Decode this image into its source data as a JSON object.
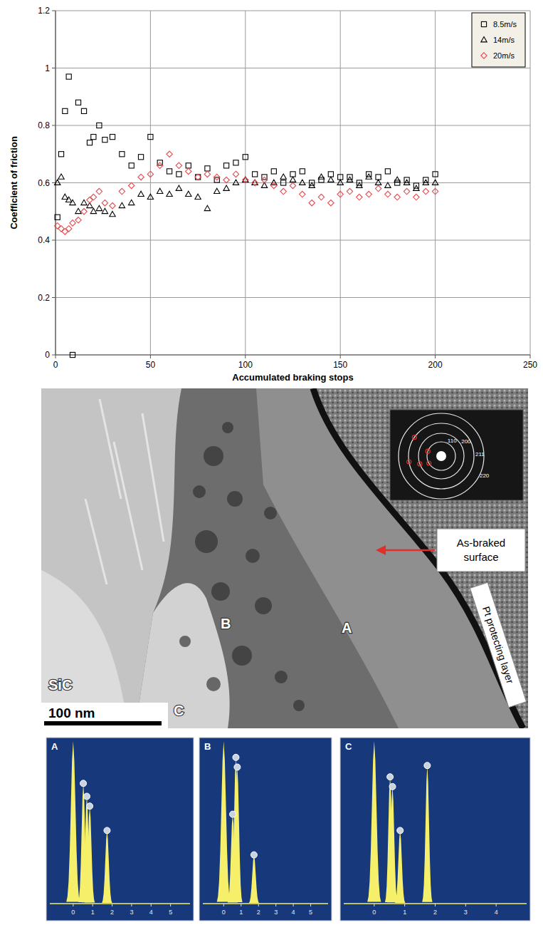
{
  "chart_data": {
    "type": "scatter",
    "x_label": "Accumulated braking stops",
    "y_label": "Coefficient of friction",
    "xlim": [
      0,
      250
    ],
    "ylim": [
      0,
      1.2
    ],
    "xticks": [
      0,
      50,
      100,
      150,
      200,
      250
    ],
    "yticks": [
      0,
      0.2,
      0.4,
      0.6,
      0.8,
      1,
      1.2
    ],
    "grid": true,
    "legend": "upper right",
    "x": [
      1,
      3,
      5,
      7,
      9,
      12,
      15,
      18,
      20,
      23,
      26,
      30,
      35,
      40,
      45,
      50,
      55,
      60,
      65,
      70,
      75,
      80,
      85,
      90,
      95,
      100,
      105,
      110,
      115,
      120,
      125,
      130,
      135,
      140,
      145,
      150,
      155,
      160,
      165,
      170,
      175,
      180,
      185,
      190,
      195,
      200
    ],
    "series": [
      {
        "name": "8.5m/s",
        "color": "#000000",
        "marker": "square",
        "values": [
          0.48,
          0.7,
          0.85,
          0.97,
          0.0,
          0.88,
          0.85,
          0.74,
          0.76,
          0.8,
          0.75,
          0.76,
          0.7,
          0.66,
          0.69,
          0.76,
          0.67,
          0.64,
          0.63,
          0.66,
          0.62,
          0.65,
          0.61,
          0.66,
          0.67,
          0.69,
          0.63,
          0.62,
          0.64,
          0.6,
          0.63,
          0.64,
          0.6,
          0.61,
          0.63,
          0.62,
          0.62,
          0.6,
          0.63,
          0.62,
          0.64,
          0.6,
          0.61,
          0.59,
          0.61,
          0.63
        ]
      },
      {
        "name": "14m/s",
        "color": "#000000",
        "marker": "triangle",
        "values": [
          0.6,
          0.62,
          0.55,
          0.54,
          0.53,
          0.5,
          0.53,
          0.52,
          0.5,
          0.51,
          0.5,
          0.49,
          0.52,
          0.53,
          0.56,
          0.55,
          0.57,
          0.56,
          0.58,
          0.56,
          0.55,
          0.51,
          0.57,
          0.58,
          0.6,
          0.61,
          0.6,
          0.59,
          0.6,
          0.62,
          0.61,
          0.6,
          0.59,
          0.62,
          0.61,
          0.6,
          0.61,
          0.59,
          0.62,
          0.6,
          0.59,
          0.61,
          0.6,
          0.58,
          0.6,
          0.6
        ]
      },
      {
        "name": "20m/s",
        "color": "#e8474c",
        "marker": "diamond",
        "values": [
          0.45,
          0.44,
          0.43,
          0.44,
          0.46,
          0.47,
          0.5,
          0.54,
          0.55,
          0.57,
          0.53,
          0.52,
          0.57,
          0.59,
          0.62,
          0.63,
          0.66,
          0.7,
          0.66,
          0.64,
          0.62,
          0.63,
          0.62,
          0.61,
          0.63,
          0.61,
          0.6,
          0.61,
          0.59,
          0.57,
          0.59,
          0.56,
          0.53,
          0.55,
          0.53,
          0.56,
          0.57,
          0.55,
          0.56,
          0.58,
          0.56,
          0.55,
          0.57,
          0.55,
          0.57,
          0.57
        ]
      }
    ]
  },
  "micrograph": {
    "region_labels": [
      "SiC",
      "C",
      "B",
      "A"
    ],
    "scale_bar": "100 nm",
    "surface_label": "As-braked surface",
    "layer_label": "Pt protecting layer",
    "diffraction_rings": [
      "110",
      "200",
      "211",
      "220"
    ]
  },
  "spectra": [
    {
      "label": "A",
      "xlim": [
        -1.2,
        6
      ],
      "xticks": [
        0,
        1,
        2,
        3,
        4,
        5
      ],
      "peaks": [
        {
          "energy": 0,
          "height": 1,
          "marked": false
        },
        {
          "energy": 0.52,
          "height": 0.74,
          "marked": true
        },
        {
          "energy": 0.7,
          "height": 0.66,
          "marked": true
        },
        {
          "energy": 0.85,
          "height": 0.6,
          "marked": true
        },
        {
          "energy": 1.74,
          "height": 0.45,
          "marked": true
        }
      ]
    },
    {
      "label": "B",
      "xlim": [
        -1.2,
        6
      ],
      "xticks": [
        0,
        1,
        2,
        3,
        4,
        5
      ],
      "peaks": [
        {
          "energy": 0,
          "height": 1,
          "marked": false
        },
        {
          "energy": 0.52,
          "height": 0.55,
          "marked": true
        },
        {
          "energy": 0.7,
          "height": 0.9,
          "marked": true
        },
        {
          "energy": 0.78,
          "height": 0.84,
          "marked": true
        },
        {
          "energy": 1.74,
          "height": 0.3,
          "marked": true
        }
      ]
    },
    {
      "label": "C",
      "xlim": [
        -1,
        5
      ],
      "xticks": [
        0,
        1,
        2,
        3,
        4
      ],
      "peaks": [
        {
          "energy": 0,
          "height": 1,
          "marked": false
        },
        {
          "energy": 0.52,
          "height": 0.78,
          "marked": true
        },
        {
          "energy": 0.6,
          "height": 0.72,
          "marked": true
        },
        {
          "energy": 0.85,
          "height": 0.45,
          "marked": true
        },
        {
          "energy": 1.74,
          "height": 0.85,
          "marked": true
        }
      ]
    }
  ]
}
